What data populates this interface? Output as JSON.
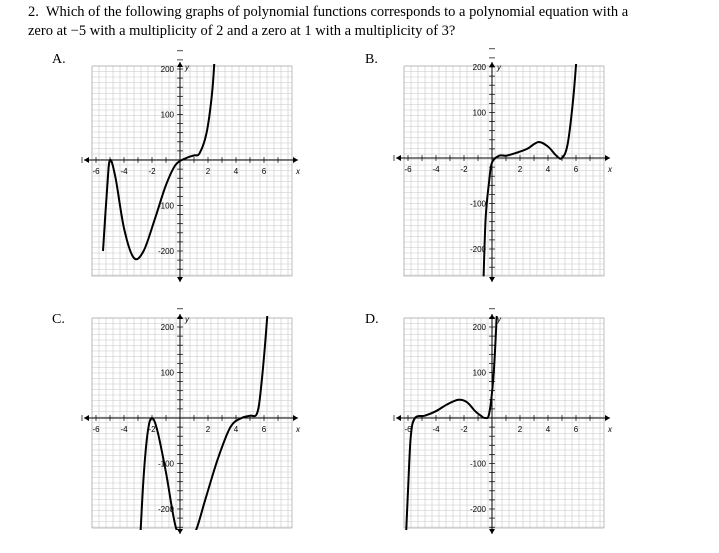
{
  "question": {
    "number": "2.",
    "line1": "Which of the following graphs of polynomial functions corresponds to a polynomial equation with a",
    "line2": "zero at −5 with a multiplicity of 2 and a zero at 1 with a multiplicity of 3?"
  },
  "options": [
    {
      "id": "A",
      "label": "A.",
      "axis_x_label": "x",
      "axis_y_label": "y",
      "x_ticks": [
        "-6",
        "-4",
        "-2",
        "2",
        "4",
        "6"
      ],
      "y_ticks": [
        "200",
        "100",
        "-100",
        "-200"
      ],
      "curve": [
        [
          -5.5,
          -200
        ],
        [
          -5.2,
          -60
        ],
        [
          -5,
          0
        ],
        [
          -4.6,
          -40
        ],
        [
          -4,
          -150
        ],
        [
          -3.3,
          -215
        ],
        [
          -2.6,
          -200
        ],
        [
          -1.8,
          -130
        ],
        [
          -1,
          -55
        ],
        [
          -0.3,
          -10
        ],
        [
          0.5,
          5
        ],
        [
          1,
          10
        ],
        [
          1.4,
          15
        ],
        [
          1.9,
          60
        ],
        [
          2.3,
          150
        ],
        [
          2.5,
          240
        ]
      ]
    },
    {
      "id": "B",
      "label": "B.",
      "axis_x_label": "x",
      "axis_y_label": "y",
      "x_ticks": [
        "-6",
        "-4",
        "-2",
        "2",
        "4",
        "6"
      ],
      "y_ticks": [
        "200",
        "100",
        "-100",
        "-200"
      ],
      "curve": [
        [
          -0.6,
          -260
        ],
        [
          -0.45,
          -130
        ],
        [
          -0.2,
          -50
        ],
        [
          0,
          -10
        ],
        [
          0.5,
          5
        ],
        [
          1,
          5
        ],
        [
          1.6,
          10
        ],
        [
          2.5,
          20
        ],
        [
          3.3,
          35
        ],
        [
          4,
          25
        ],
        [
          4.6,
          5
        ],
        [
          5,
          0
        ],
        [
          5.4,
          30
        ],
        [
          5.8,
          130
        ],
        [
          6.1,
          245
        ]
      ]
    },
    {
      "id": "C",
      "label": "C.",
      "axis_x_label": "x",
      "axis_y_label": "y",
      "x_ticks": [
        "-6",
        "-4",
        "-2",
        "2",
        "4",
        "6"
      ],
      "y_ticks": [
        "200",
        "100",
        "-100",
        "-200"
      ],
      "curve": [
        [
          -2.9,
          -300
        ],
        [
          -2.6,
          -130
        ],
        [
          -2.3,
          -30
        ],
        [
          -2,
          0
        ],
        [
          -1.6,
          -30
        ],
        [
          -1,
          -120
        ],
        [
          -0.3,
          -240
        ],
        [
          0.4,
          -275
        ],
        [
          1.1,
          -250
        ],
        [
          1.8,
          -180
        ],
        [
          2.7,
          -90
        ],
        [
          3.6,
          -20
        ],
        [
          4.4,
          0
        ],
        [
          5,
          5
        ],
        [
          5.5,
          10
        ],
        [
          5.8,
          70
        ],
        [
          6.2,
          210
        ],
        [
          6.4,
          310
        ]
      ]
    },
    {
      "id": "D",
      "label": "D.",
      "axis_x_label": "x",
      "axis_y_label": "y",
      "x_ticks": [
        "-6",
        "-4",
        "-2",
        "2",
        "4",
        "6"
      ],
      "y_ticks": [
        "200",
        "100",
        "-100",
        "-200"
      ],
      "curve": [
        [
          -6.2,
          -300
        ],
        [
          -6,
          -160
        ],
        [
          -5.8,
          -40
        ],
        [
          -5.5,
          0
        ],
        [
          -4.8,
          5
        ],
        [
          -4,
          15
        ],
        [
          -3.2,
          30
        ],
        [
          -2.4,
          40
        ],
        [
          -1.8,
          35
        ],
        [
          -1.2,
          15
        ],
        [
          -0.8,
          5
        ],
        [
          -0.5,
          0
        ],
        [
          -0.2,
          10
        ],
        [
          0.1,
          90
        ],
        [
          0.3,
          200
        ],
        [
          0.45,
          300
        ]
      ]
    }
  ]
}
